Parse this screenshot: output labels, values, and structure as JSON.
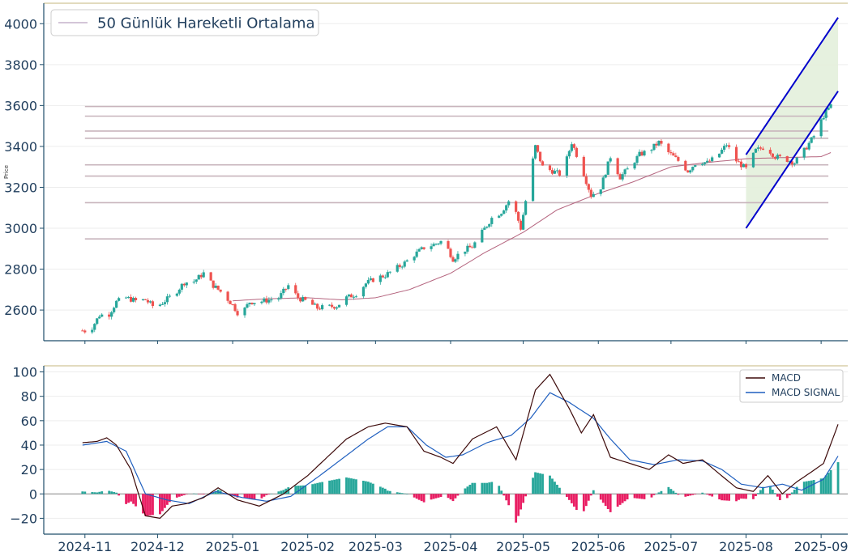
{
  "chart_data": [
    {
      "type": "candlestick",
      "ylabel": "Price",
      "ylim": [
        2450,
        4100
      ],
      "y_ticks": [
        "2600",
        "2800",
        "3000",
        "3200",
        "3400",
        "3600",
        "3800",
        "4000"
      ],
      "legend": {
        "placement": "top-left",
        "entries": [
          "50 Günlük Hareketli Ortalama"
        ]
      },
      "colors": {
        "up": "#26a69a",
        "down": "#ef5350",
        "ma": "#b5657f",
        "levels": "#c8b4bc",
        "channel": "#0000cc",
        "channel_fill": "#e3f0dc",
        "axes": "#1f4e6a",
        "text": "#1f3d5c",
        "top_border": "#d8cfa8"
      },
      "x_range": [
        "2024-10-15",
        "2025-09-12"
      ],
      "horizontal_levels": [
        3595,
        3548,
        3475,
        3440,
        3310,
        3255,
        3125,
        2948
      ],
      "levels_span": [
        "2024-11-01",
        "2025-09-04"
      ],
      "channel": {
        "upper": [
          [
            "2025-08-01",
            3360
          ],
          [
            "2025-09-08",
            4030
          ]
        ],
        "lower": [
          [
            "2025-08-01",
            3000
          ],
          [
            "2025-09-08",
            3670
          ]
        ]
      },
      "price_anchors": [
        [
          "2024-10-31",
          2500
        ],
        [
          "2024-11-03",
          2495
        ],
        [
          "2024-11-07",
          2575
        ],
        [
          "2024-11-11",
          2580
        ],
        [
          "2024-11-14",
          2640
        ],
        [
          "2024-11-18",
          2660
        ],
        [
          "2024-11-22",
          2645
        ],
        [
          "2024-11-26",
          2650
        ],
        [
          "2024-11-30",
          2610
        ],
        [
          "2024-12-04",
          2645
        ],
        [
          "2024-12-08",
          2680
        ],
        [
          "2024-12-12",
          2735
        ],
        [
          "2024-12-16",
          2740
        ],
        [
          "2024-12-20",
          2780
        ],
        [
          "2024-12-24",
          2720
        ],
        [
          "2024-12-28",
          2680
        ],
        [
          "2025-01-01",
          2625
        ],
        [
          "2025-01-04",
          2570
        ],
        [
          "2025-01-08",
          2640
        ],
        [
          "2025-01-12",
          2640
        ],
        [
          "2025-01-16",
          2650
        ],
        [
          "2025-01-20",
          2660
        ],
        [
          "2025-01-24",
          2720
        ],
        [
          "2025-01-28",
          2660
        ],
        [
          "2025-02-01",
          2640
        ],
        [
          "2025-02-05",
          2610
        ],
        [
          "2025-02-09",
          2615
        ],
        [
          "2025-02-13",
          2620
        ],
        [
          "2025-02-17",
          2660
        ],
        [
          "2025-02-21",
          2680
        ],
        [
          "2025-02-25",
          2730
        ],
        [
          "2025-03-01",
          2755
        ],
        [
          "2025-03-05",
          2770
        ],
        [
          "2025-03-09",
          2800
        ],
        [
          "2025-03-13",
          2830
        ],
        [
          "2025-03-17",
          2870
        ],
        [
          "2025-03-21",
          2905
        ],
        [
          "2025-03-25",
          2920
        ],
        [
          "2025-03-29",
          2940
        ],
        [
          "2025-04-02",
          2850
        ],
        [
          "2025-04-06",
          2890
        ],
        [
          "2025-04-10",
          2910
        ],
        [
          "2025-04-14",
          2980
        ],
        [
          "2025-04-18",
          3050
        ],
        [
          "2025-04-22",
          3080
        ],
        [
          "2025-04-26",
          3150
        ],
        [
          "2025-04-30",
          3000
        ],
        [
          "2025-05-03",
          3200
        ],
        [
          "2025-05-06",
          3400
        ],
        [
          "2025-05-09",
          3300
        ],
        [
          "2025-05-13",
          3280
        ],
        [
          "2025-05-17",
          3260
        ],
        [
          "2025-05-21",
          3420
        ],
        [
          "2025-05-25",
          3300
        ],
        [
          "2025-05-29",
          3160
        ],
        [
          "2025-06-02",
          3200
        ],
        [
          "2025-06-06",
          3350
        ],
        [
          "2025-06-10",
          3250
        ],
        [
          "2025-06-14",
          3300
        ],
        [
          "2025-06-18",
          3360
        ],
        [
          "2025-06-22",
          3380
        ],
        [
          "2025-06-26",
          3420
        ],
        [
          "2025-06-30",
          3370
        ],
        [
          "2025-07-04",
          3330
        ],
        [
          "2025-07-08",
          3280
        ],
        [
          "2025-07-12",
          3330
        ],
        [
          "2025-07-16",
          3320
        ],
        [
          "2025-07-20",
          3350
        ],
        [
          "2025-07-24",
          3410
        ],
        [
          "2025-07-28",
          3330
        ],
        [
          "2025-08-01",
          3290
        ],
        [
          "2025-08-05",
          3380
        ],
        [
          "2025-08-09",
          3400
        ],
        [
          "2025-08-13",
          3350
        ],
        [
          "2025-08-17",
          3340
        ],
        [
          "2025-08-21",
          3320
        ],
        [
          "2025-08-25",
          3380
        ],
        [
          "2025-08-29",
          3450
        ],
        [
          "2025-09-02",
          3550
        ],
        [
          "2025-09-05",
          3600
        ]
      ],
      "ma_start": "2025-01-01",
      "ma_anchors": [
        [
          "2025-01-01",
          2645
        ],
        [
          "2025-01-15",
          2655
        ],
        [
          "2025-02-01",
          2660
        ],
        [
          "2025-02-15",
          2650
        ],
        [
          "2025-03-01",
          2660
        ],
        [
          "2025-03-15",
          2700
        ],
        [
          "2025-04-01",
          2780
        ],
        [
          "2025-04-15",
          2880
        ],
        [
          "2025-05-01",
          2980
        ],
        [
          "2025-05-15",
          3090
        ],
        [
          "2025-06-01",
          3170
        ],
        [
          "2025-06-15",
          3225
        ],
        [
          "2025-07-01",
          3300
        ],
        [
          "2025-07-15",
          3320
        ],
        [
          "2025-08-01",
          3340
        ],
        [
          "2025-08-15",
          3345
        ],
        [
          "2025-09-01",
          3350
        ],
        [
          "2025-09-05",
          3370
        ]
      ]
    },
    {
      "type": "line",
      "ylim": [
        -33,
        105
      ],
      "y_ticks": [
        "100",
        "80",
        "60",
        "40",
        "20",
        "0",
        "−20"
      ],
      "x_tick_labels": [
        "2024-11",
        "2024-12",
        "2025-01",
        "2025-02",
        "2025-03",
        "2025-04",
        "2025-05",
        "2025-06",
        "2025-07",
        "2025-08",
        "2025-09"
      ],
      "x_tick_dates": [
        "2024-11-01",
        "2024-12-01",
        "2025-01-01",
        "2025-02-01",
        "2025-03-01",
        "2025-04-01",
        "2025-05-01",
        "2025-06-01",
        "2025-07-01",
        "2025-08-01",
        "2025-09-01"
      ],
      "legend": {
        "placement": "top-right"
      },
      "colors": {
        "macd": "#3d0a0a",
        "signal": "#1f5fbf",
        "hist_pos": "#26a69a",
        "hist_neg": "#e91e63"
      },
      "series": [
        {
          "name": "MACD",
          "points": [
            [
              "2024-10-31",
              42
            ],
            [
              "2024-11-06",
              43
            ],
            [
              "2024-11-10",
              46
            ],
            [
              "2024-11-14",
              40
            ],
            [
              "2024-11-20",
              20
            ],
            [
              "2024-11-26",
              -18
            ],
            [
              "2024-12-02",
              -20
            ],
            [
              "2024-12-07",
              -10
            ],
            [
              "2024-12-13",
              -8
            ],
            [
              "2024-12-20",
              -3
            ],
            [
              "2024-12-26",
              5
            ],
            [
              "2025-01-03",
              -5
            ],
            [
              "2025-01-12",
              -10
            ],
            [
              "2025-01-22",
              0
            ],
            [
              "2025-02-01",
              15
            ],
            [
              "2025-02-09",
              30
            ],
            [
              "2025-02-17",
              45
            ],
            [
              "2025-02-26",
              55
            ],
            [
              "2025-03-05",
              58
            ],
            [
              "2025-03-14",
              55
            ],
            [
              "2025-03-21",
              35
            ],
            [
              "2025-03-28",
              30
            ],
            [
              "2025-04-02",
              25
            ],
            [
              "2025-04-10",
              45
            ],
            [
              "2025-04-20",
              55
            ],
            [
              "2025-04-28",
              28
            ],
            [
              "2025-05-06",
              85
            ],
            [
              "2025-05-12",
              98
            ],
            [
              "2025-05-20",
              70
            ],
            [
              "2025-05-25",
              50
            ],
            [
              "2025-05-30",
              65
            ],
            [
              "2025-06-06",
              30
            ],
            [
              "2025-06-14",
              25
            ],
            [
              "2025-06-22",
              20
            ],
            [
              "2025-06-30",
              32
            ],
            [
              "2025-07-06",
              25
            ],
            [
              "2025-07-14",
              28
            ],
            [
              "2025-07-20",
              18
            ],
            [
              "2025-07-28",
              5
            ],
            [
              "2025-08-04",
              2
            ],
            [
              "2025-08-10",
              15
            ],
            [
              "2025-08-16",
              0
            ],
            [
              "2025-08-22",
              10
            ],
            [
              "2025-08-28",
              18
            ],
            [
              "2025-09-02",
              25
            ],
            [
              "2025-09-08",
              57
            ]
          ]
        },
        {
          "name": "MACD SIGNAL",
          "points": [
            [
              "2024-10-31",
              40
            ],
            [
              "2024-11-10",
              43
            ],
            [
              "2024-11-18",
              35
            ],
            [
              "2024-11-26",
              0
            ],
            [
              "2024-12-05",
              -5
            ],
            [
              "2024-12-14",
              -8
            ],
            [
              "2024-12-25",
              2
            ],
            [
              "2025-01-05",
              -3
            ],
            [
              "2025-01-15",
              -6
            ],
            [
              "2025-01-25",
              -2
            ],
            [
              "2025-02-06",
              15
            ],
            [
              "2025-02-16",
              30
            ],
            [
              "2025-02-26",
              45
            ],
            [
              "2025-03-06",
              55
            ],
            [
              "2025-03-14",
              55
            ],
            [
              "2025-03-22",
              40
            ],
            [
              "2025-03-30",
              30
            ],
            [
              "2025-04-06",
              32
            ],
            [
              "2025-04-16",
              42
            ],
            [
              "2025-04-26",
              48
            ],
            [
              "2025-05-04",
              62
            ],
            [
              "2025-05-12",
              83
            ],
            [
              "2025-05-20",
              75
            ],
            [
              "2025-05-30",
              62
            ],
            [
              "2025-06-06",
              45
            ],
            [
              "2025-06-14",
              28
            ],
            [
              "2025-06-24",
              24
            ],
            [
              "2025-07-04",
              28
            ],
            [
              "2025-07-14",
              27
            ],
            [
              "2025-07-22",
              20
            ],
            [
              "2025-07-30",
              8
            ],
            [
              "2025-08-08",
              5
            ],
            [
              "2025-08-16",
              8
            ],
            [
              "2025-08-24",
              3
            ],
            [
              "2025-09-02",
              12
            ],
            [
              "2025-09-08",
              31
            ]
          ]
        }
      ]
    }
  ]
}
